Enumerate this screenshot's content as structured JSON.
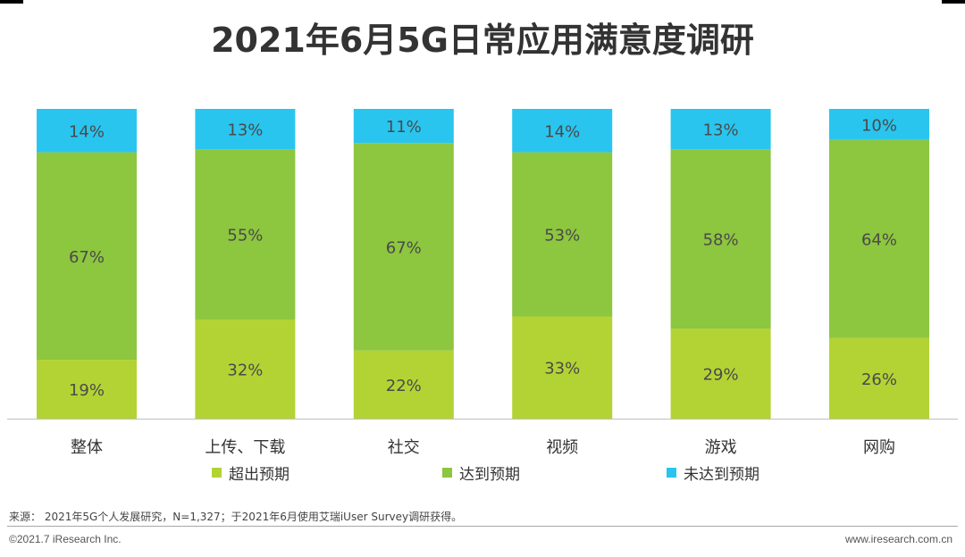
{
  "title": "2021年6月5G日常应用满意度调研",
  "chart_data": {
    "type": "bar",
    "stacked": true,
    "percent_stacked": true,
    "categories": [
      "整体",
      "上传、下载",
      "社交",
      "视频",
      "游戏",
      "网购"
    ],
    "series": [
      {
        "name": "超出预期",
        "color": "#b3d334",
        "values": [
          19,
          32,
          22,
          33,
          29,
          26
        ]
      },
      {
        "name": "达到预期",
        "color": "#8dc63f",
        "values": [
          67,
          55,
          67,
          53,
          58,
          64
        ]
      },
      {
        "name": "未达到预期",
        "color": "#29c5ef",
        "values": [
          14,
          13,
          11,
          14,
          13,
          10
        ]
      }
    ],
    "value_suffix": "%",
    "ylim": [
      0,
      100
    ],
    "legend_position": "bottom",
    "grid": false
  },
  "legend": {
    "items": [
      "超出预期",
      "达到预期",
      "未达到预期"
    ]
  },
  "source": "来源：  2021年5G个人发展研究，N=1,327；于2021年6月使用艾瑞iUser Survey调研获得。",
  "copyright": "©2021.7 iResearch Inc.",
  "website": "www.iresearch.com.cn"
}
